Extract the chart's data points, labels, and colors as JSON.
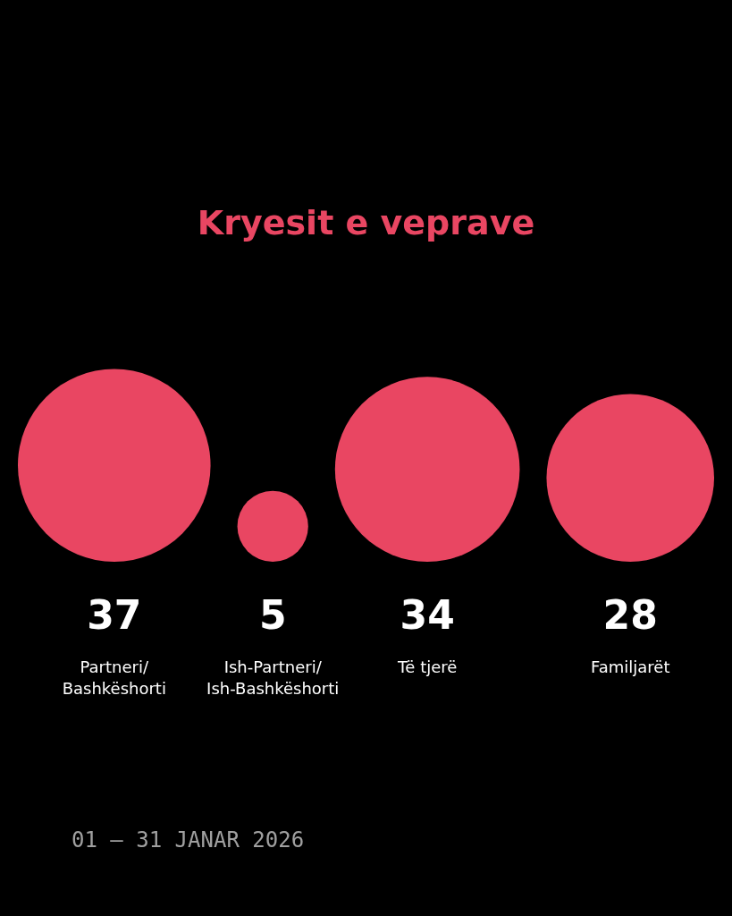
{
  "chart_data": {
    "type": "other",
    "title": "Kryesit e veprave",
    "categories": [
      "Partneri/ Bashkëshorti",
      "Ish-Partneri/ Ish-Bashkëshorti",
      "Të tjerë",
      "Familjarët"
    ],
    "values": [
      37,
      5,
      34,
      28
    ],
    "color": "#e94662",
    "data_labels": true,
    "annotations": [
      "01 – 31 JANAR 2026"
    ]
  }
}
